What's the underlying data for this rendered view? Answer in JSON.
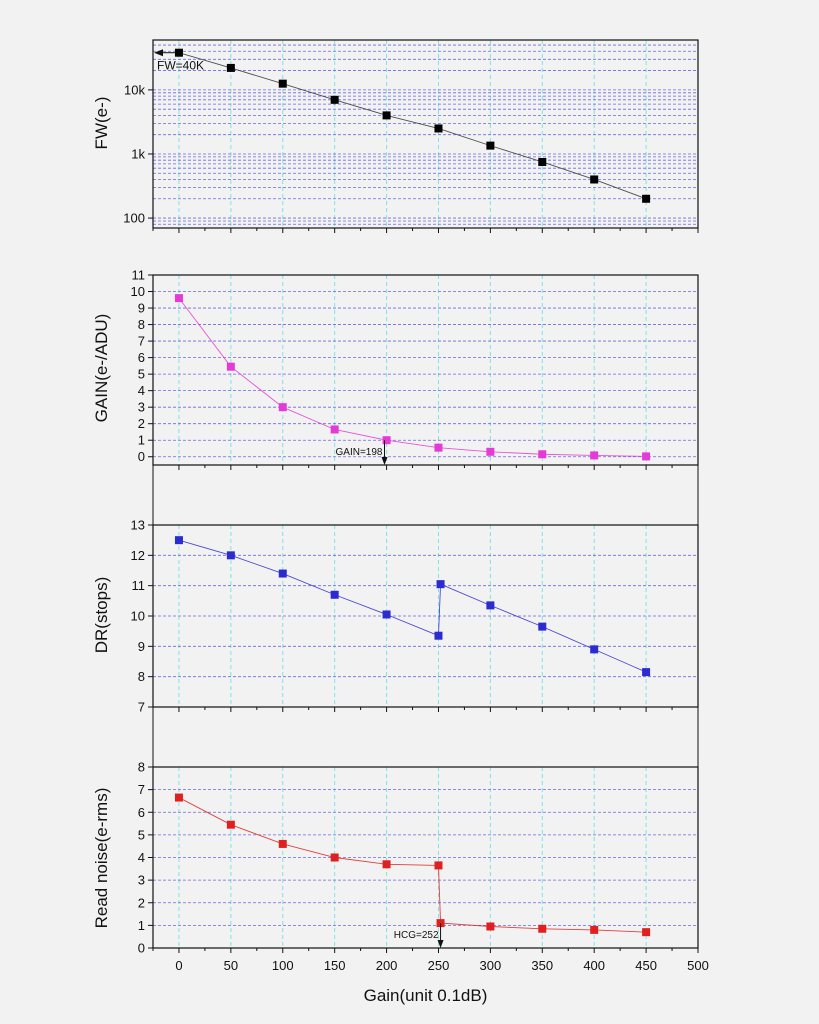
{
  "chart_data": {
    "type": "line",
    "shared_x": {
      "label": "Gain(unit 0.1dB)",
      "range": [
        -25,
        500
      ],
      "ticks": [
        0,
        50,
        100,
        150,
        200,
        250,
        300,
        350,
        400,
        450,
        500
      ]
    },
    "panels": [
      {
        "id": "fw",
        "ylabel": "FW(e-)",
        "yscale": "log",
        "ylim": [
          70,
          60000
        ],
        "ytick_values": [
          100,
          1000,
          10000
        ],
        "ytick_labels": [
          "100",
          "1k",
          "10k"
        ],
        "color": "#000000",
        "x": [
          0,
          50,
          100,
          150,
          200,
          250,
          300,
          350,
          400,
          450
        ],
        "y": [
          38000,
          22000,
          12500,
          7000,
          4000,
          2500,
          1350,
          750,
          400,
          200
        ],
        "annotation": {
          "text": "FW=40K",
          "x": 0,
          "y": 38000
        }
      },
      {
        "id": "gain",
        "ylabel": "GAIN(e-/ADU)",
        "yscale": "linear",
        "ylim": [
          -0.5,
          11
        ],
        "ytick_values": [
          0,
          1,
          2,
          3,
          4,
          5,
          6,
          7,
          8,
          9,
          10,
          11
        ],
        "ytick_labels": [
          "0",
          "1",
          "2",
          "3",
          "4",
          "5",
          "6",
          "7",
          "8",
          "9",
          "10",
          "11"
        ],
        "color": "#e43ad6",
        "x": [
          0,
          50,
          100,
          150,
          200,
          250,
          300,
          350,
          400,
          450
        ],
        "y": [
          9.6,
          5.45,
          3.0,
          1.65,
          1.0,
          0.55,
          0.3,
          0.15,
          0.08,
          0.02
        ],
        "annotation": {
          "text": "GAIN=198",
          "x": 198,
          "y": 1.0
        }
      },
      {
        "id": "dr",
        "ylabel": "DR(stops)",
        "yscale": "linear",
        "ylim": [
          7,
          13
        ],
        "ytick_values": [
          7,
          8,
          9,
          10,
          11,
          12,
          13
        ],
        "ytick_labels": [
          "7",
          "8",
          "9",
          "10",
          "11",
          "12",
          "13"
        ],
        "color": "#2b2bd0",
        "x": [
          0,
          50,
          100,
          150,
          200,
          250,
          252,
          300,
          350,
          400,
          450
        ],
        "y": [
          12.5,
          12.0,
          11.4,
          10.7,
          10.05,
          9.35,
          11.05,
          10.35,
          9.65,
          8.9,
          8.15
        ]
      },
      {
        "id": "noise",
        "ylabel": "Read noise(e-rms)",
        "yscale": "linear",
        "ylim": [
          0,
          8
        ],
        "ytick_values": [
          0,
          1,
          2,
          3,
          4,
          5,
          6,
          7,
          8
        ],
        "ytick_labels": [
          "0",
          "1",
          "2",
          "3",
          "4",
          "5",
          "6",
          "7",
          "8"
        ],
        "color": "#e02020",
        "x": [
          0,
          50,
          100,
          150,
          200,
          250,
          252,
          300,
          350,
          400,
          450
        ],
        "y": [
          6.65,
          5.45,
          4.6,
          4.0,
          3.7,
          3.65,
          1.1,
          0.95,
          0.85,
          0.8,
          0.7
        ],
        "annotation": {
          "text": "HCG=252",
          "x": 252,
          "y": 1.1
        }
      }
    ],
    "grid": true
  }
}
